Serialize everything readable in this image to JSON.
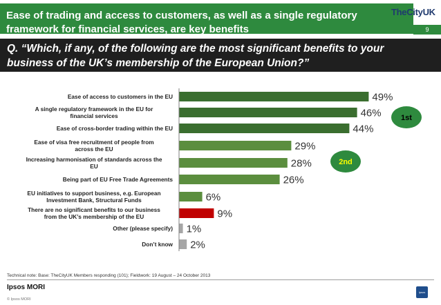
{
  "header": {
    "title": "Ease of trading and access to customers, as well as a single regulatory framework for financial services, are key benefits",
    "logo": "TheCityUK",
    "page_number": "9"
  },
  "question": "Q. “Which, if any, of the following are the most significant benefits to your business of the UK’s membership of the European Union?”",
  "chart_data": {
    "type": "bar",
    "orientation": "horizontal",
    "categories": [
      "Ease of access to customers in the EU",
      "A single regulatory framework in the EU for financial services",
      "Ease of cross-border trading within the EU",
      "Ease of visa free recruitment of people from across the EU",
      "Increasing harmonisation of standards across the EU",
      "Being part of EU Free Trade Agreements",
      "EU initiatives to support business, e.g. European Investment Bank, Structural Funds",
      "There are no significant benefits to our business from the UK’s membership of the EU",
      "Other (please specify)",
      "Don’t know"
    ],
    "values": [
      49,
      46,
      44,
      29,
      28,
      26,
      6,
      9,
      1,
      2
    ],
    "value_labels": [
      "49%",
      "46%",
      "44%",
      "29%",
      "28%",
      "26%",
      "6%",
      "9%",
      "1%",
      "2%"
    ],
    "bar_colors": [
      "#3a6e2f",
      "#3a6e2f",
      "#3a6e2f",
      "#5b8e3e",
      "#5b8e3e",
      "#5b8e3e",
      "#5b8e3e",
      "#c00000",
      "#a6a6a6",
      "#a6a6a6"
    ],
    "xlim": [
      0,
      55
    ],
    "grid": false,
    "annotations": [
      {
        "text": "1st",
        "color": "#2e8a3e",
        "text_color": "#000000",
        "row": 1
      },
      {
        "text": "2nd",
        "color": "#2e8a3e",
        "text_color": "#ffff00",
        "row": 4
      }
    ]
  },
  "footer": {
    "technical_note": "Technical note: Base: TheCityUK Members responding (101); Fieldwork: 19 August – 24 October 2013",
    "brand": "Ipsos MORI",
    "copyright": "© Ipsos MORI",
    "badge": "Ipsos"
  },
  "colors": {
    "header_green": "#2e8a3e",
    "question_bg": "#1f1f1f"
  }
}
